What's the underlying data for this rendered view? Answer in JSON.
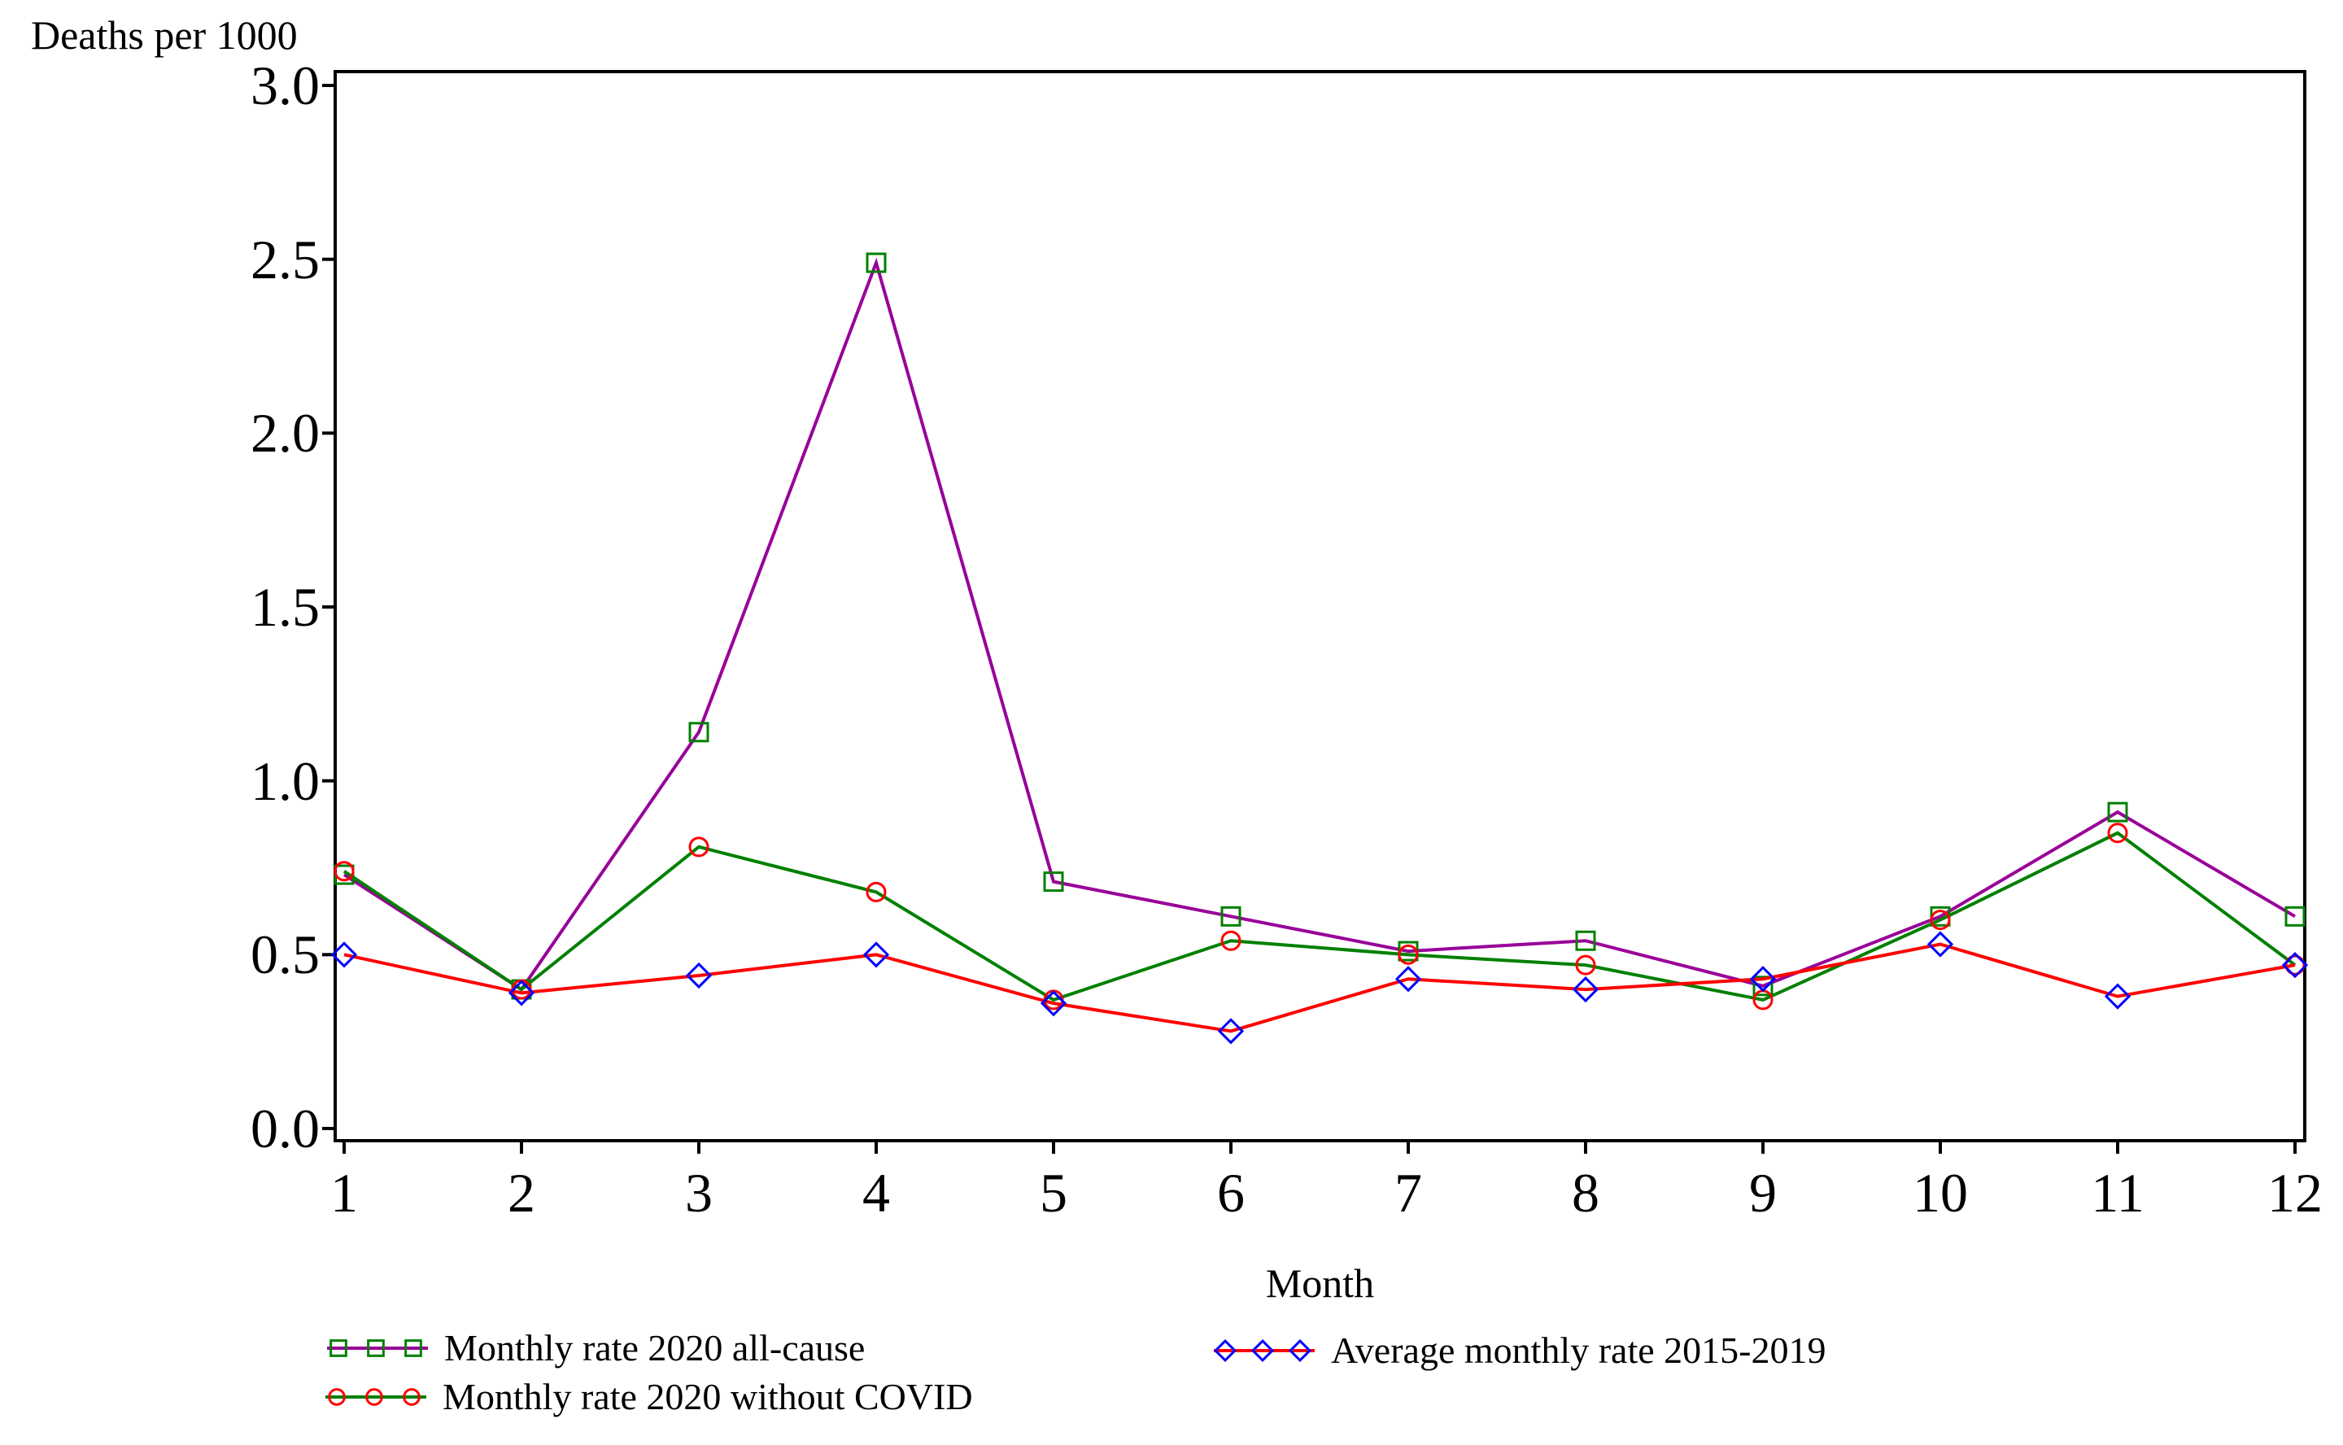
{
  "page": {
    "background": "#ffffff",
    "text_color": "#000000",
    "axis_color": "#000000"
  },
  "chart_data": {
    "type": "line",
    "title": "",
    "ylabel": "Deaths per 1000",
    "xlabel": "Month",
    "x": [
      1,
      2,
      3,
      4,
      5,
      6,
      7,
      8,
      9,
      10,
      11,
      12
    ],
    "categories": [
      "1",
      "2",
      "3",
      "4",
      "5",
      "6",
      "7",
      "8",
      "9",
      "10",
      "11",
      "12"
    ],
    "yticks": [
      "3.0",
      "2.5",
      "2.0",
      "1.5",
      "1.0",
      "0.5",
      "0.0"
    ],
    "ylim": [
      0.0,
      3.0
    ],
    "xlim": [
      1,
      12
    ],
    "grid": false,
    "legend_position": "bottom",
    "series": [
      {
        "name": "Monthly rate 2020 all-cause",
        "marker": "square",
        "marker_color": "#008000",
        "line_color": "#990099",
        "values": [
          0.73,
          0.4,
          1.14,
          2.49,
          0.71,
          0.61,
          0.51,
          0.54,
          0.41,
          0.61,
          0.91,
          0.61
        ]
      },
      {
        "name": "Monthly rate 2020 without COVID",
        "marker": "circle",
        "marker_color": "#FF0000",
        "line_color": "#008000",
        "values": [
          0.74,
          0.4,
          0.81,
          0.68,
          0.37,
          0.54,
          0.5,
          0.47,
          0.37,
          0.6,
          0.85,
          0.47
        ]
      },
      {
        "name": "Average monthly rate 2015-2019",
        "marker": "diamond",
        "marker_color": "#0000FF",
        "line_color": "#FF0000",
        "values": [
          0.5,
          0.39,
          0.44,
          0.5,
          0.36,
          0.28,
          0.43,
          0.4,
          0.43,
          0.53,
          0.38,
          0.47
        ]
      }
    ]
  }
}
